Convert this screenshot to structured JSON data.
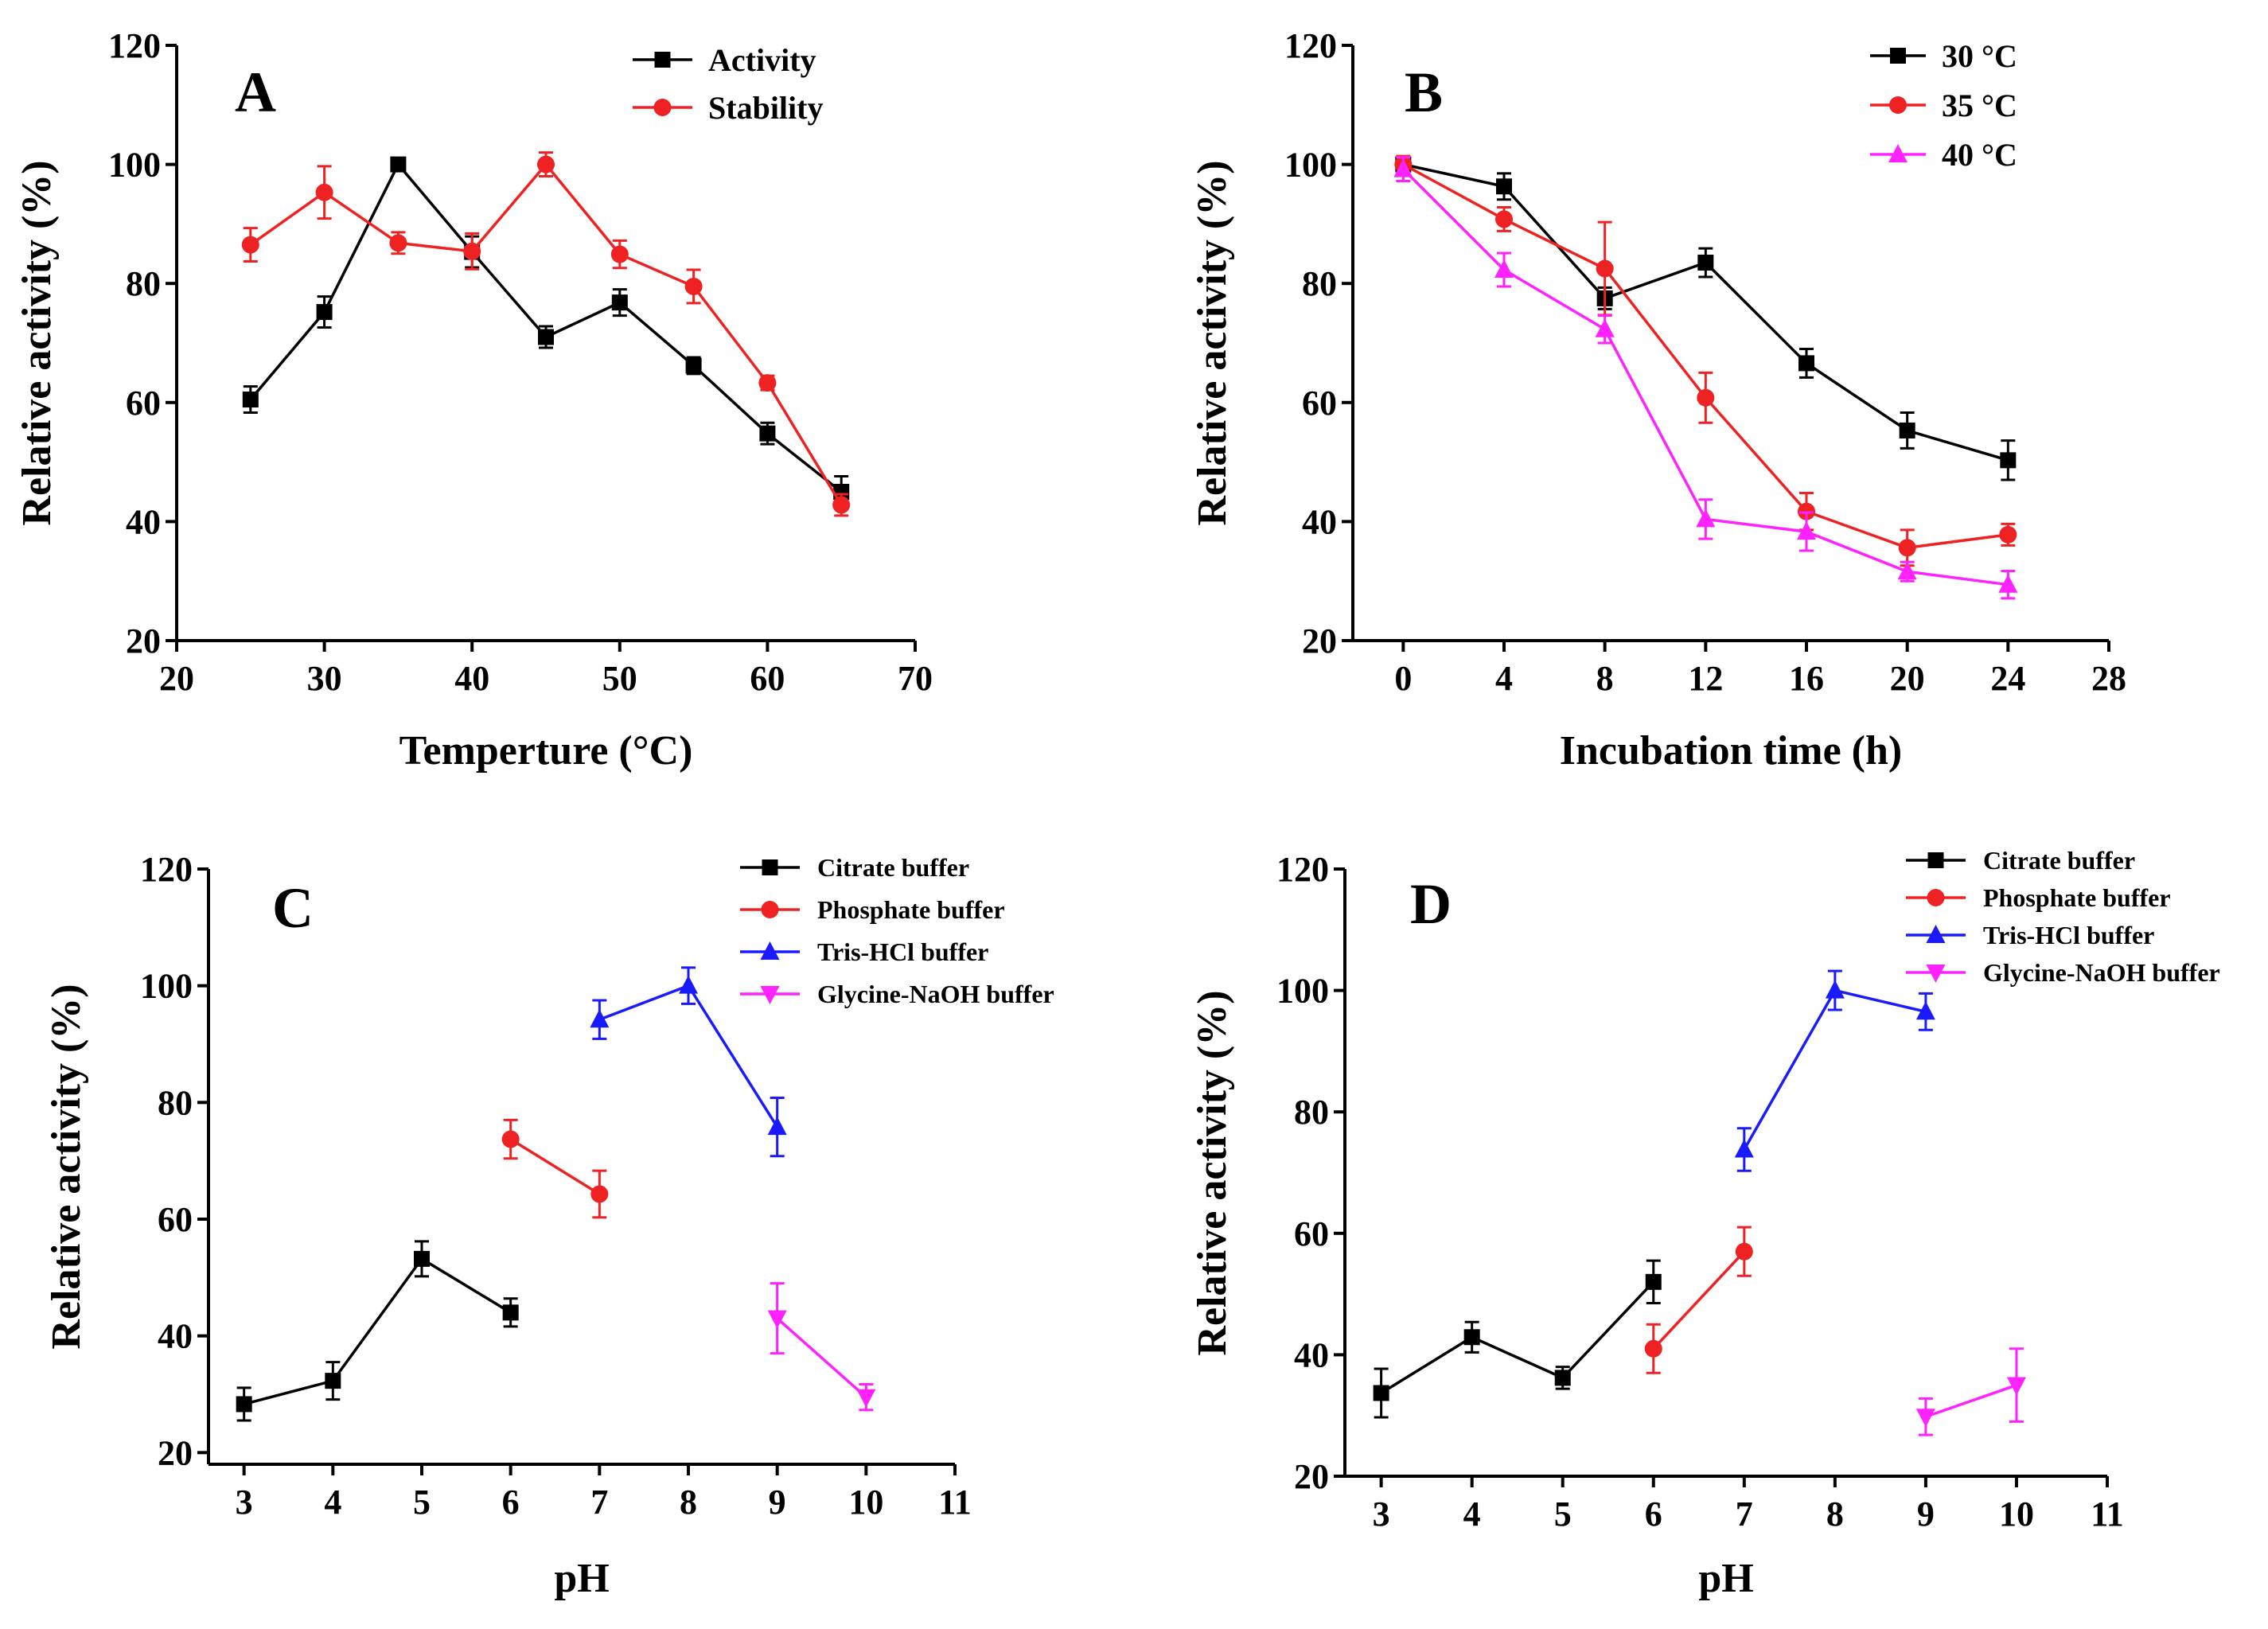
{
  "chart_data": [
    {
      "panel": "A",
      "type": "line",
      "xlabel": "Temperture (°C)",
      "ylabel": "Relative activity (%)",
      "xlim": [
        20,
        70
      ],
      "ylim": [
        20,
        120
      ],
      "xticks": [
        20,
        30,
        40,
        50,
        60,
        70
      ],
      "yticks": [
        20,
        40,
        60,
        80,
        100,
        120
      ],
      "legend_position": "top-right",
      "series": [
        {
          "name": "Activity",
          "color": "#000000",
          "marker": "square",
          "x": [
            25,
            30,
            35,
            40,
            45,
            50,
            55,
            60,
            65
          ],
          "values": [
            60.5,
            75.2,
            100,
            85.3,
            71,
            76.8,
            66.2,
            54.8,
            45
          ],
          "errors": [
            2.2,
            2.6,
            0.5,
            2.6,
            1.8,
            2.2,
            1.4,
            1.8,
            2.6
          ]
        },
        {
          "name": "Stability",
          "color": "#ee2222",
          "marker": "circle",
          "x": [
            25,
            30,
            35,
            40,
            45,
            50,
            55,
            60,
            65
          ],
          "values": [
            86.5,
            95.3,
            86.8,
            85.4,
            100,
            84.9,
            79.5,
            63.3,
            42.8
          ],
          "errors": [
            2.8,
            4.4,
            1.8,
            3.0,
            2.0,
            2.3,
            2.8,
            1.2,
            1.8
          ]
        }
      ]
    },
    {
      "panel": "B",
      "type": "line",
      "xlabel": "Incubation time (h)",
      "ylabel": "Relative activity (%)",
      "xlim": [
        -2,
        28
      ],
      "ylim": [
        20,
        120
      ],
      "xticks": [
        0,
        4,
        8,
        12,
        16,
        20,
        24,
        28
      ],
      "yticks": [
        20,
        40,
        60,
        80,
        100,
        120
      ],
      "legend_position": "top-right",
      "series": [
        {
          "name": "30 °C",
          "color": "#000000",
          "marker": "square",
          "x": [
            0,
            4,
            8,
            12,
            16,
            20,
            24
          ],
          "values": [
            100,
            96.3,
            77.5,
            83.5,
            66.6,
            55.3,
            50.3
          ],
          "errors": [
            0.8,
            2.2,
            1.8,
            2.4,
            2.4,
            3.0,
            3.3
          ]
        },
        {
          "name": "35 °C",
          "color": "#ee2222",
          "marker": "circle",
          "x": [
            0,
            4,
            8,
            12,
            16,
            20,
            24
          ],
          "values": [
            100,
            90.8,
            82.5,
            60.8,
            41.7,
            35.6,
            37.8
          ],
          "errors": [
            1.4,
            2.0,
            7.8,
            4.2,
            3.1,
            3.0,
            1.8
          ]
        },
        {
          "name": "40 °C",
          "color": "#ff22ff",
          "marker": "triangle",
          "x": [
            0,
            4,
            8,
            12,
            16,
            20,
            24
          ],
          "values": [
            99.2,
            82.3,
            72.3,
            40.4,
            38.3,
            31.6,
            29.4
          ],
          "errors": [
            2.0,
            2.8,
            2.3,
            3.3,
            3.2,
            1.6,
            2.3
          ]
        }
      ]
    },
    {
      "panel": "C",
      "type": "line",
      "xlabel": "pH",
      "ylabel": "Relative activity (%)",
      "xlim": [
        2.6,
        11
      ],
      "ylim": [
        18,
        120
      ],
      "xticks": [
        3,
        4,
        5,
        6,
        7,
        8,
        9,
        10,
        11
      ],
      "yticks": [
        20,
        40,
        60,
        80,
        100,
        120
      ],
      "legend_position": "top-right",
      "series": [
        {
          "name": "Citrate buffer",
          "color": "#000000",
          "marker": "square",
          "x": [
            3,
            4,
            5,
            6
          ],
          "values": [
            28.3,
            32.3,
            53.2,
            44
          ],
          "errors": [
            2.8,
            3.2,
            3.0,
            2.4
          ]
        },
        {
          "name": "Phosphate buffer",
          "color": "#ee2222",
          "marker": "circle",
          "x": [
            6,
            7
          ],
          "values": [
            73.7,
            64.3
          ],
          "errors": [
            3.3,
            4.0
          ]
        },
        {
          "name": "Tris-HCl buffer",
          "color": "#1a1aff",
          "marker": "triangle",
          "x": [
            7,
            8,
            9
          ],
          "values": [
            94.2,
            100,
            75.8
          ],
          "errors": [
            3.3,
            3.1,
            5.0
          ]
        },
        {
          "name": "Glycine-NaOH buffer",
          "color": "#ff22ff",
          "marker": "triangle-down",
          "x": [
            9,
            10
          ],
          "values": [
            43,
            29.5
          ],
          "errors": [
            6.0,
            2.2
          ]
        }
      ]
    },
    {
      "panel": "D",
      "type": "line",
      "xlabel": "pH",
      "ylabel": "Relative activity (%)",
      "xlim": [
        2.6,
        11
      ],
      "ylim": [
        20,
        120
      ],
      "xticks": [
        3,
        4,
        5,
        6,
        7,
        8,
        9,
        10,
        11
      ],
      "yticks": [
        20,
        40,
        60,
        80,
        100,
        120
      ],
      "legend_position": "top-right",
      "series": [
        {
          "name": "Citrate buffer",
          "color": "#000000",
          "marker": "square",
          "x": [
            3,
            4,
            5,
            6
          ],
          "values": [
            33.7,
            42.9,
            36.2,
            52
          ],
          "errors": [
            4.0,
            2.5,
            1.8,
            3.5
          ]
        },
        {
          "name": "Phosphate buffer",
          "color": "#ee2222",
          "marker": "circle",
          "x": [
            6,
            7
          ],
          "values": [
            41,
            57
          ],
          "errors": [
            4.0,
            4.0
          ]
        },
        {
          "name": "Tris-HCl buffer",
          "color": "#1a1aff",
          "marker": "triangle",
          "x": [
            7,
            8,
            9
          ],
          "values": [
            73.8,
            100,
            96.5
          ],
          "errors": [
            3.5,
            3.2,
            3.0
          ]
        },
        {
          "name": "Glycine-NaOH buffer",
          "color": "#ff22ff",
          "marker": "triangle-down",
          "x": [
            9,
            10
          ],
          "values": [
            29.8,
            35
          ],
          "errors": [
            3.0,
            6.0
          ]
        }
      ]
    }
  ]
}
